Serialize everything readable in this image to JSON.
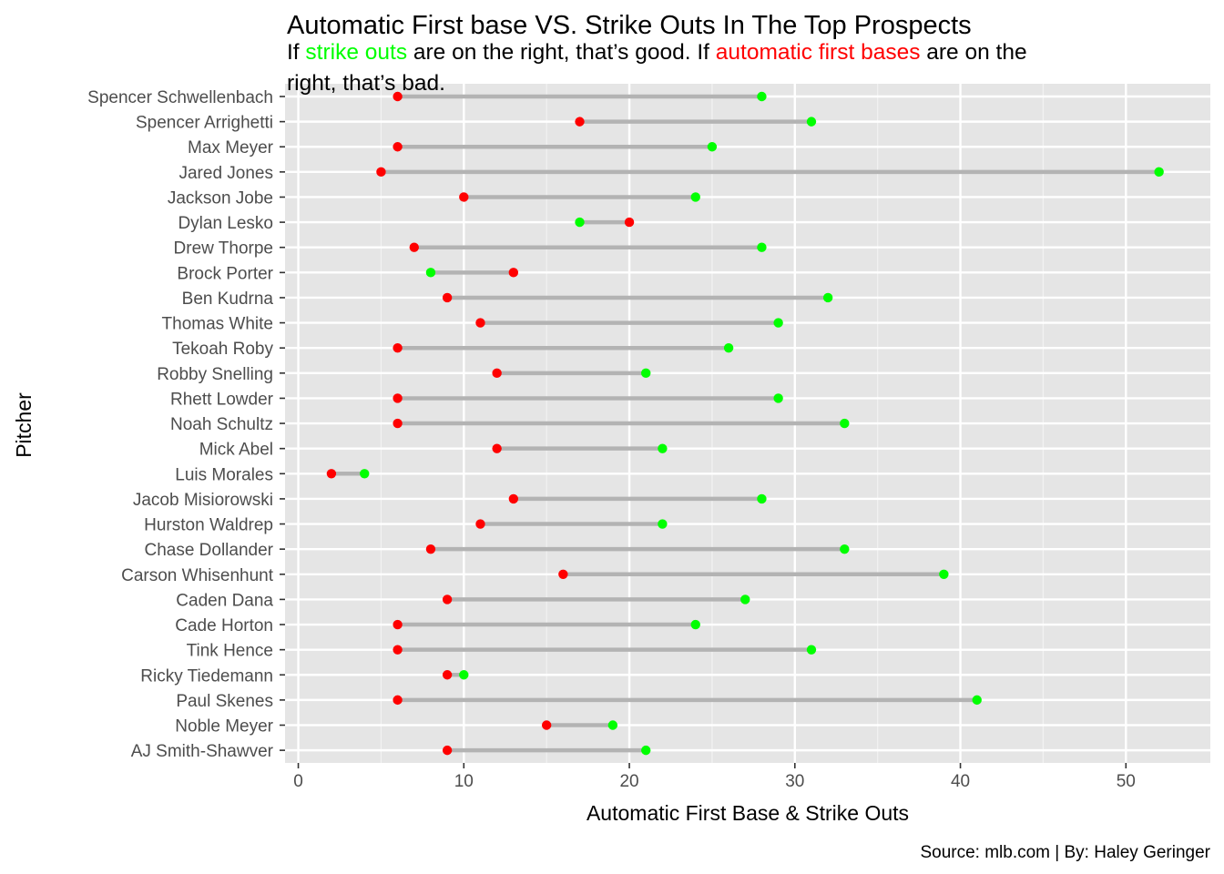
{
  "chart_data": {
    "type": "dumbbell",
    "title": "Automatic First base VS. Strike Outs In The Top Prospects",
    "subtitle": {
      "segments": [
        {
          "text": "If ",
          "color": "#000000"
        },
        {
          "text": "strike outs",
          "color": "#00ff00"
        },
        {
          "text": " are on the right, that’s good. If ",
          "color": "#000000"
        },
        {
          "text": "automatic first bases",
          "color": "#ff0000"
        },
        {
          "text": " are on the",
          "color": "#000000"
        }
      ],
      "line2": "right, that’s bad."
    },
    "xlabel": "Automatic First Base & Strike Outs",
    "ylabel": "Pitcher",
    "caption": "Source: mlb.com | By: Haley Geringer",
    "xlim": [
      0,
      54
    ],
    "xticks": [
      0,
      10,
      20,
      30,
      40,
      50
    ],
    "grid": true,
    "colors": {
      "strike_outs": "#00ff00",
      "automatic_first_bases": "#ff0000",
      "segment": "#b3b3b3",
      "panel": "#e5e5e5"
    },
    "pitchers": [
      {
        "name": "Spencer Schwellenbach",
        "afb": 6,
        "so": 28
      },
      {
        "name": "Spencer Arrighetti",
        "afb": 17,
        "so": 31
      },
      {
        "name": "Max Meyer",
        "afb": 6,
        "so": 25
      },
      {
        "name": "Jared Jones",
        "afb": 5,
        "so": 52
      },
      {
        "name": "Jackson Jobe",
        "afb": 10,
        "so": 24
      },
      {
        "name": "Dylan Lesko",
        "afb": 20,
        "so": 17
      },
      {
        "name": "Drew Thorpe",
        "afb": 7,
        "so": 28
      },
      {
        "name": "Brock Porter",
        "afb": 13,
        "so": 8
      },
      {
        "name": "Ben Kudrna",
        "afb": 9,
        "so": 32
      },
      {
        "name": "Thomas White",
        "afb": 11,
        "so": 29
      },
      {
        "name": "Tekoah Roby",
        "afb": 6,
        "so": 26
      },
      {
        "name": "Robby Snelling",
        "afb": 12,
        "so": 21
      },
      {
        "name": "Rhett Lowder",
        "afb": 6,
        "so": 29
      },
      {
        "name": "Noah Schultz",
        "afb": 6,
        "so": 33
      },
      {
        "name": "Mick Abel",
        "afb": 12,
        "so": 22
      },
      {
        "name": "Luis Morales",
        "afb": 2,
        "so": 4
      },
      {
        "name": "Jacob Misiorowski",
        "afb": 13,
        "so": 28
      },
      {
        "name": "Hurston Waldrep",
        "afb": 11,
        "so": 22
      },
      {
        "name": "Chase Dollander",
        "afb": 8,
        "so": 33
      },
      {
        "name": "Carson Whisenhunt",
        "afb": 16,
        "so": 39
      },
      {
        "name": "Caden Dana",
        "afb": 9,
        "so": 27
      },
      {
        "name": "Cade Horton",
        "afb": 6,
        "so": 24
      },
      {
        "name": "Tink Hence",
        "afb": 6,
        "so": 31
      },
      {
        "name": "Ricky Tiedemann",
        "afb": 9,
        "so": 10
      },
      {
        "name": "Paul Skenes",
        "afb": 6,
        "so": 41
      },
      {
        "name": "Noble Meyer",
        "afb": 15,
        "so": 19
      },
      {
        "name": "AJ Smith-Shawver",
        "afb": 9,
        "so": 21
      }
    ]
  }
}
